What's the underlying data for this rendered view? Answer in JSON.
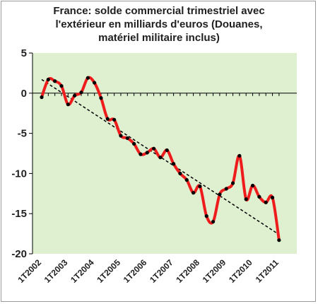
{
  "chart_data": {
    "type": "line",
    "title": "France: solde commercial trimestriel avec\nl'extérieur en milliards d'euros (Douanes,\nmatériel militaire inclus)",
    "xlabel": "",
    "ylabel": "",
    "ylim": [
      -20,
      5
    ],
    "yticks": [
      5,
      0,
      -5,
      -10,
      -15,
      -20
    ],
    "ytick_labels": [
      "5",
      "0",
      "-5",
      "-10",
      "-15",
      "-20"
    ],
    "xtick_labels": [
      "1T2002",
      "1T2003",
      "1T2004",
      "1T2005",
      "1T2006",
      "1T2007",
      "1T2008",
      "1T2009",
      "1T2010",
      "1T2011"
    ],
    "grid": false,
    "plot_background": "#dff0d0",
    "series": [
      {
        "color": "#ee1c1c",
        "marker_color": "#000000",
        "x": [
          "1T2002",
          "2T2002",
          "3T2002",
          "4T2002",
          "1T2003",
          "2T2003",
          "3T2003",
          "4T2003",
          "1T2004",
          "2T2004",
          "3T2004",
          "4T2004",
          "1T2005",
          "2T2005",
          "3T2005",
          "4T2005",
          "1T2006",
          "2T2006",
          "3T2006",
          "4T2006",
          "1T2007",
          "2T2007",
          "3T2007",
          "4T2007",
          "1T2008",
          "2T2008",
          "3T2008",
          "4T2008",
          "1T2009",
          "2T2009",
          "3T2009",
          "4T2009",
          "1T2010",
          "2T2010",
          "3T2010",
          "4T2010",
          "1T2011"
        ],
        "values": [
          -0.5,
          1.7,
          1.5,
          0.9,
          -1.4,
          -0.3,
          0.1,
          1.9,
          1.3,
          -0.6,
          -3.2,
          -3.3,
          -5.3,
          -5.6,
          -6.3,
          -7.6,
          -7.4,
          -6.9,
          -8.0,
          -7.1,
          -8.8,
          -10.0,
          -10.8,
          -12.4,
          -11.6,
          -15.3,
          -16.0,
          -12.6,
          -11.9,
          -11.2,
          -7.8,
          -13.2,
          -11.5,
          -12.9,
          -13.6,
          -13.0,
          -18.3
        ]
      },
      {
        "style": "dashed",
        "color": "#000000",
        "x": [
          "1T2002",
          "1T2011"
        ],
        "values": [
          1.7,
          -17.6
        ]
      }
    ]
  }
}
